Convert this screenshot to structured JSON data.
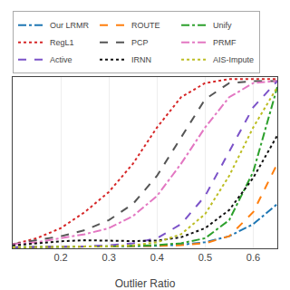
{
  "chart_data": {
    "type": "line",
    "xlabel": "Outlier Ratio",
    "x": [
      0.1,
      0.15,
      0.2,
      0.25,
      0.3,
      0.35,
      0.4,
      0.45,
      0.5,
      0.55,
      0.6,
      0.65
    ],
    "xlim": [
      0.1,
      0.65
    ],
    "xticks": [
      0.2,
      0.3,
      0.4,
      0.5,
      0.6
    ],
    "ylim": [
      0.0,
      0.85
    ],
    "yticks": [],
    "tick_labels": "x",
    "grid": true,
    "legend": "upper left",
    "series": [
      {
        "name": "Our LRMR",
        "color": "#1f77b4",
        "line_style": "dashdot",
        "values": [
          0.005,
          0.006,
          0.007,
          0.008,
          0.009,
          0.01,
          0.012,
          0.018,
          0.03,
          0.06,
          0.12,
          0.22
        ]
      },
      {
        "name": "ROUTE",
        "color": "#ff7f0e",
        "line_style": "dash",
        "values": [
          0.005,
          0.006,
          0.007,
          0.008,
          0.009,
          0.01,
          0.012,
          0.016,
          0.025,
          0.06,
          0.18,
          0.42
        ]
      },
      {
        "name": "Unify",
        "color": "#2ca02c",
        "line_style": "dashdot",
        "values": [
          0.005,
          0.006,
          0.007,
          0.008,
          0.01,
          0.012,
          0.016,
          0.025,
          0.05,
          0.14,
          0.38,
          0.8
        ]
      },
      {
        "name": "RegL1",
        "color": "#d62728",
        "line_style": "dot",
        "values": [
          0.02,
          0.05,
          0.1,
          0.18,
          0.28,
          0.42,
          0.6,
          0.75,
          0.82,
          0.84,
          0.84,
          0.84
        ]
      },
      {
        "name": "PCP",
        "color": "#555555",
        "line_style": "dash",
        "values": [
          0.02,
          0.04,
          0.06,
          0.09,
          0.14,
          0.22,
          0.36,
          0.55,
          0.74,
          0.82,
          0.83,
          0.83
        ]
      },
      {
        "name": "PRMF",
        "color": "#e377c2",
        "line_style": "dashdot",
        "values": [
          0.02,
          0.03,
          0.05,
          0.07,
          0.1,
          0.16,
          0.26,
          0.42,
          0.6,
          0.75,
          0.82,
          0.83
        ]
      },
      {
        "name": "Active",
        "color": "#7b52c8",
        "line_style": "dash",
        "values": [
          0.005,
          0.006,
          0.008,
          0.01,
          0.015,
          0.025,
          0.05,
          0.12,
          0.26,
          0.48,
          0.7,
          0.83
        ]
      },
      {
        "name": "IRNN",
        "color": "#111111",
        "line_style": "dot",
        "values": [
          0.015,
          0.025,
          0.035,
          0.04,
          0.038,
          0.036,
          0.038,
          0.055,
          0.1,
          0.19,
          0.35,
          0.56
        ]
      },
      {
        "name": "AIS-Impute",
        "color": "#bcbd22",
        "line_style": "dot",
        "values": [
          0.005,
          0.006,
          0.007,
          0.008,
          0.01,
          0.015,
          0.03,
          0.07,
          0.17,
          0.36,
          0.6,
          0.8
        ]
      }
    ]
  }
}
